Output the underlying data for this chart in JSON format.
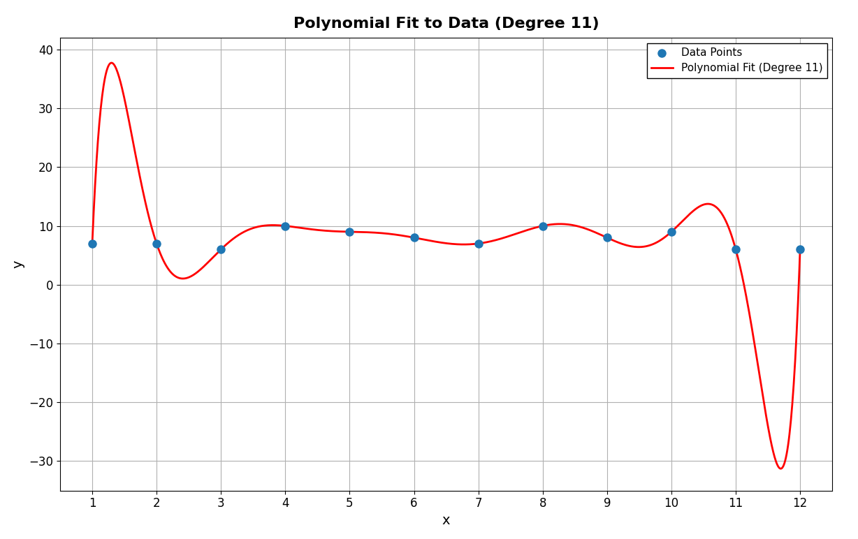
{
  "x_data": [
    1,
    2,
    3,
    4,
    5,
    6,
    7,
    8,
    9,
    10,
    11,
    12
  ],
  "y_data": [
    7,
    7,
    6,
    10,
    9,
    8,
    7,
    10,
    8,
    9,
    6,
    6
  ],
  "poly_degree": 11,
  "title": "Polynomial Fit to Data (Degree 11)",
  "xlabel": "x",
  "ylabel": "y",
  "xlim": [
    0.5,
    12.5
  ],
  "ylim": [
    -35,
    42
  ],
  "yticks": [
    -30,
    -20,
    -10,
    0,
    10,
    20,
    30,
    40
  ],
  "xticks": [
    1,
    2,
    3,
    4,
    5,
    6,
    7,
    8,
    9,
    10,
    11,
    12
  ],
  "data_point_color": "#1f77b4",
  "line_color": "red",
  "line_width": 2,
  "marker_size": 64,
  "legend_labels": [
    "Data Points",
    "Polynomial Fit (Degree 11)"
  ],
  "grid_color": "#b0b0b0",
  "background_color": "#ffffff",
  "title_fontsize": 16,
  "axis_label_fontsize": 14,
  "tick_fontsize": 12
}
